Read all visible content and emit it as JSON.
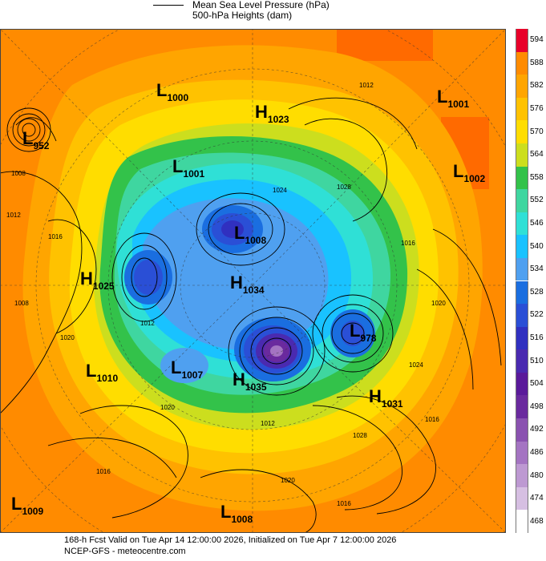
{
  "legend": {
    "line1": "Mean Sea Level Pressure (hPa)",
    "line2": "500-hPa Heights (dam)"
  },
  "colorbar": {
    "levels": [
      "594",
      "588",
      "582",
      "576",
      "570",
      "564",
      "558",
      "552",
      "546",
      "540",
      "534",
      "528",
      "522",
      "516",
      "510",
      "504",
      "498",
      "492",
      "486",
      "480",
      "474",
      "468"
    ],
    "colors": [
      "#e8002a",
      "#ff8b00",
      "#ffa500",
      "#ffc200",
      "#ffdd00",
      "#ccde1e",
      "#33c24a",
      "#3fd6a0",
      "#2fe0d6",
      "#19c2ff",
      "#4fa0f0",
      "#1a6ee0",
      "#2a4fd6",
      "#3030c0",
      "#4a2ab0",
      "#5a1a9a",
      "#6a2a9e",
      "#8a52b0",
      "#a474c2",
      "#bd99d2",
      "#d6bfe2",
      "#ffffff"
    ]
  },
  "systems": [
    {
      "type": "L",
      "value": "1000"
    },
    {
      "type": "H",
      "value": "1023"
    },
    {
      "type": "L",
      "value": "1001"
    },
    {
      "type": "L",
      "value": "952"
    },
    {
      "type": "L",
      "value": "1002"
    },
    {
      "type": "L",
      "value": "1001"
    },
    {
      "type": "L",
      "value": "1008"
    },
    {
      "type": "H",
      "value": "1025"
    },
    {
      "type": "H",
      "value": "1034"
    },
    {
      "type": "L",
      "value": "978"
    },
    {
      "type": "L",
      "value": "1010"
    },
    {
      "type": "L",
      "value": "1007"
    },
    {
      "type": "H",
      "value": "1035"
    },
    {
      "type": "H",
      "value": "1031"
    },
    {
      "type": "L",
      "value": "1009"
    },
    {
      "type": "L",
      "value": "1008"
    }
  ],
  "isobar_labels": [
    "1012",
    "1008",
    "1012",
    "1016",
    "1020",
    "1024",
    "1028",
    "1012",
    "1016",
    "1020",
    "1024",
    "1028",
    "1016",
    "1020",
    "1016",
    "1012",
    "1008",
    "1016",
    "1020"
  ],
  "footer": {
    "line1": "168-h Fcst Valid on Tue Apr 14 12:00:00 2026, Initialized on Tue Apr  7 12:00:00 2026",
    "line2": "NCEP-GFS  -  meteocentre.com"
  }
}
